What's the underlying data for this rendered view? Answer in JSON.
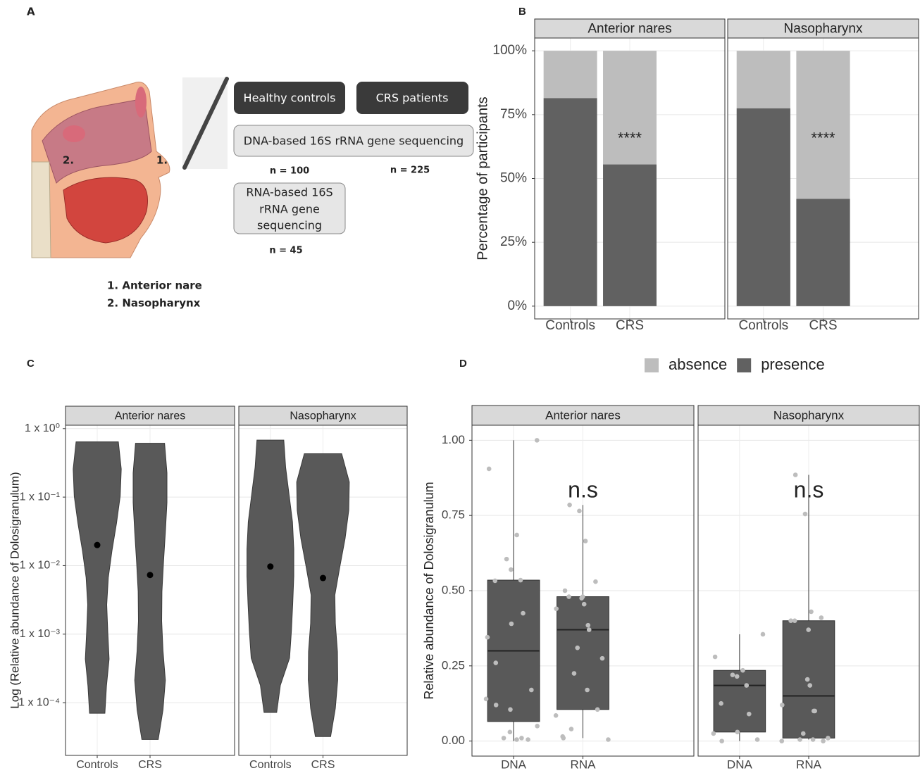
{
  "diagram": {
    "panel_label": "A",
    "image_labels": [
      "2.",
      "1."
    ],
    "groups": [
      "Healthy controls",
      "CRS patients"
    ],
    "dna_method": "DNA-based 16S rRNA gene sequencing",
    "dna_counts": [
      "n = 100",
      "n = 225"
    ],
    "rna_method": [
      "RNA-based 16S",
      "rRNA gene",
      "sequencing"
    ],
    "rna_count": "n = 45",
    "legend": [
      "1. Anterior nare",
      "2. Nasopharynx"
    ]
  },
  "chart_data": [
    {
      "type": "stacked_bar",
      "panel_label": "B",
      "y_label": "Percentage of participants",
      "ylim": [
        -5,
        105
      ],
      "yticks": [
        {
          "value": 0,
          "label": "0%"
        },
        {
          "value": 25,
          "label": "25%"
        },
        {
          "value": 50,
          "label": "50%"
        },
        {
          "value": 75,
          "label": "75%"
        },
        {
          "value": 100,
          "label": "100%"
        }
      ],
      "grid": true,
      "legend_position": "bottom",
      "series": [
        {
          "name": "absence",
          "color": "#bdbdbd"
        },
        {
          "name": "presence",
          "color": "#616161"
        }
      ],
      "facets": [
        {
          "title": "Anterior nares",
          "categories": [
            "Controls",
            "CRS"
          ],
          "series_values": [
            [
              18.5,
              44.5
            ],
            [
              81.5,
              55.5
            ]
          ],
          "annotations": [
            null,
            "****"
          ]
        },
        {
          "title": "Nasopharynx",
          "categories": [
            "Controls",
            "CRS"
          ],
          "series_values": [
            [
              22.5,
              58
            ],
            [
              77.5,
              42
            ]
          ],
          "annotations": [
            null,
            "****"
          ]
        }
      ]
    },
    {
      "type": "violin",
      "panel_label": "C",
      "y_label": "Log (Relative abundance of Dolosigranulum)",
      "log_y": true,
      "ylim": [
        1.7e-05,
        1.12
      ],
      "yticks": [
        {
          "value": 1,
          "label": "1 x 10⁰"
        },
        {
          "value": 0.1,
          "label": "1 x 10⁻¹"
        },
        {
          "value": 0.01,
          "label": "1 x 10⁻²"
        },
        {
          "value": 0.001,
          "label": "1 x 10⁻³"
        },
        {
          "value": 0.0001,
          "label": "1 x 10⁻⁴"
        }
      ],
      "grid": true,
      "color": "#595959",
      "facets": [
        {
          "title": "Anterior nares",
          "categories": [
            "Controls",
            "CRS"
          ],
          "violins": [
            {
              "min": 7e-05,
              "max": 0.64,
              "median": 0.02,
              "density": [
                0.29,
                0.35,
                0.45,
                0.4,
                0.36,
                0.42,
                0.56,
                0.73,
                0.87,
                0.91,
                0.8
              ]
            },
            {
              "min": 2.9e-05,
              "max": 0.61,
              "median": 0.0073,
              "density": [
                0.31,
                0.49,
                0.58,
                0.49,
                0.44,
                0.45,
                0.51,
                0.58,
                0.64,
                0.64,
                0.55
              ]
            }
          ]
        },
        {
          "title": "Nasopharynx",
          "categories": [
            "Controls",
            "CRS"
          ],
          "violins": [
            {
              "min": 7.2e-05,
              "max": 0.68,
              "median": 0.0097,
              "density": [
                0.24,
                0.38,
                0.73,
                0.8,
                0.85,
                0.89,
                0.89,
                0.84,
                0.71,
                0.58,
                0.51
              ]
            },
            {
              "min": 3.2e-05,
              "max": 0.43,
              "median": 0.0066,
              "density": [
                0.29,
                0.47,
                0.56,
                0.55,
                0.47,
                0.45,
                0.64,
                0.84,
                0.98,
                1.0,
                0.71
              ]
            }
          ]
        }
      ]
    },
    {
      "type": "box",
      "panel_label": "D",
      "y_label": "Relative abundance of Dolosigranulum",
      "ylim": [
        -0.05,
        1.05
      ],
      "yticks": [
        {
          "value": 0,
          "label": "0.00"
        },
        0.25,
        {
          "value": 0.5,
          "label": "0.50"
        },
        0.75,
        {
          "value": 1,
          "label": "1.00"
        }
      ],
      "grid": true,
      "color": "#595959",
      "point_color": "#bdbdbd",
      "facets": [
        {
          "title": "Anterior nares",
          "categories": [
            "DNA",
            "RNA"
          ],
          "annotation": "n.s",
          "boxes": [
            {
              "whisker_low": 0,
              "q1": 0.065,
              "median": 0.3,
              "q3": 0.535,
              "whisker_high": 1.0,
              "points": [
                1.0,
                0.905,
                0.685,
                0.605,
                0.57,
                0.535,
                0.533,
                0.425,
                0.39,
                0.345,
                0.26,
                0.17,
                0.14,
                0.12,
                0.105,
                0.05,
                0.03,
                0.01,
                0.01,
                0.005,
                0.005
              ]
            },
            {
              "whisker_low": 0.01,
              "q1": 0.105,
              "median": 0.37,
              "q3": 0.48,
              "whisker_high": 0.785,
              "points": [
                0.785,
                0.765,
                0.665,
                0.53,
                0.5,
                0.48,
                0.48,
                0.475,
                0.455,
                0.44,
                0.385,
                0.37,
                0.31,
                0.275,
                0.225,
                0.17,
                0.105,
                0.085,
                0.04,
                0.015,
                0.01,
                0.005
              ]
            }
          ]
        },
        {
          "title": "Nasopharynx",
          "categories": [
            "DNA",
            "RNA"
          ],
          "annotation": "n.s",
          "boxes": [
            {
              "whisker_low": 0,
              "q1": 0.03,
              "median": 0.185,
              "q3": 0.235,
              "whisker_high": 0.355,
              "points": [
                0.355,
                0.28,
                0.235,
                0.22,
                0.215,
                0.185,
                0.125,
                0.09,
                0.03,
                0.025,
                0.0,
                0.005
              ]
            },
            {
              "whisker_low": 0.005,
              "q1": 0.01,
              "median": 0.15,
              "q3": 0.4,
              "whisker_high": 0.885,
              "points": [
                0.885,
                0.755,
                0.43,
                0.41,
                0.4,
                0.4,
                0.37,
                0.205,
                0.185,
                0.12,
                0.1,
                0.1,
                0.025,
                0.01,
                0.005,
                0.005,
                0.0,
                0.0
              ]
            }
          ]
        }
      ]
    }
  ]
}
